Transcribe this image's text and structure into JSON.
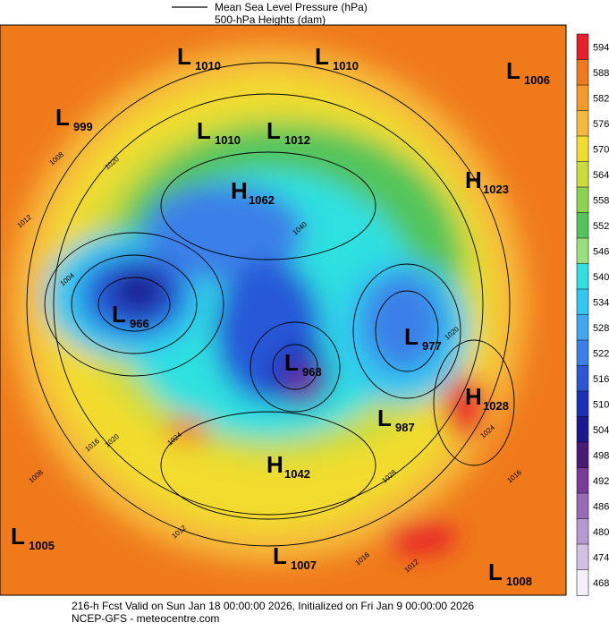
{
  "header": {
    "legend": [
      "Mean Sea Level Pressure (hPa)",
      "500-hPa Heights (dam)"
    ]
  },
  "colorbar": {
    "levels": [
      594,
      588,
      582,
      576,
      570,
      564,
      558,
      552,
      546,
      540,
      534,
      528,
      522,
      516,
      510,
      504,
      498,
      492,
      486,
      480,
      474,
      468
    ],
    "colors": [
      "#e8202a",
      "#f07a1a",
      "#f49a2a",
      "#f6b83a",
      "#f2dc2e",
      "#c8dc3a",
      "#8ed44a",
      "#52c45a",
      "#9ae07a",
      "#2ee0e0",
      "#30c8f0",
      "#40a8f0",
      "#3a80e8",
      "#2858d8",
      "#1a30b8",
      "#1a1a90",
      "#4a1a78",
      "#7a3a9a",
      "#9a6ab8",
      "#b898d0",
      "#d4c0e4",
      "#f4f0f8"
    ]
  },
  "centers": [
    {
      "letter": "L",
      "value": 1010
    },
    {
      "letter": "L",
      "value": 1010
    },
    {
      "letter": "L",
      "value": 1006
    },
    {
      "letter": "L",
      "value": 999
    },
    {
      "letter": "L",
      "value": 1010
    },
    {
      "letter": "L",
      "value": 1012
    },
    {
      "letter": "H",
      "value": 1023
    },
    {
      "letter": "H",
      "value": 1062
    },
    {
      "letter": "L",
      "value": 966
    },
    {
      "letter": "L",
      "value": 977
    },
    {
      "letter": "L",
      "value": 968
    },
    {
      "letter": "H",
      "value": 1028
    },
    {
      "letter": "L",
      "value": 987
    },
    {
      "letter": "H",
      "value": 1042
    },
    {
      "letter": "L",
      "value": 1005
    },
    {
      "letter": "L",
      "value": 1007
    },
    {
      "letter": "L",
      "value": 1008
    }
  ],
  "contour_labels": [
    1012,
    1008,
    1020,
    1024,
    1016,
    1004,
    1040,
    1020,
    1028,
    1024,
    1016,
    1012,
    1020,
    1008,
    1016,
    1012
  ],
  "footer": [
    "216-h Fcst Valid on Sun Jan 18 00:00:00 2026, Initialized on Fri Jan  9 00:00:00 2026",
    "NCEP-GFS - meteocentre.com"
  ]
}
